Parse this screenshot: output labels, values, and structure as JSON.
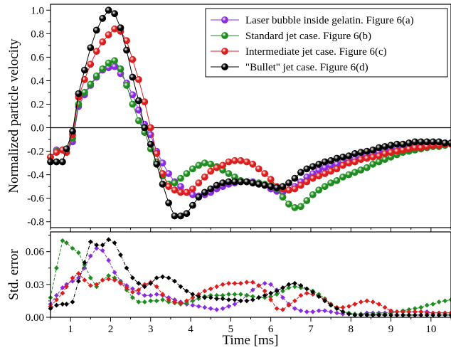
{
  "chart_data": [
    {
      "type": "line",
      "panel": "top",
      "xlabel": "",
      "ylabel": "Normalized particle velocity",
      "xlim": [
        0.5,
        10.5
      ],
      "ylim": [
        -0.85,
        1.05
      ],
      "xticks": [
        "1",
        "2",
        "3",
        "4",
        "5",
        "6",
        "7",
        "8",
        "9",
        "10"
      ],
      "yticks": [
        "-0.8",
        "-0.6",
        "-0.4",
        "-0.2",
        "0.0",
        "0.2",
        "0.4",
        "0.6",
        "0.8",
        "1.0"
      ],
      "hline": 0,
      "legend_position": "top-right",
      "x": [
        0.5,
        0.65,
        0.8,
        0.9,
        1.05,
        1.2,
        1.35,
        1.5,
        1.65,
        1.8,
        1.95,
        2.1,
        2.25,
        2.4,
        2.55,
        2.7,
        2.85,
        3.0,
        3.15,
        3.3,
        3.45,
        3.6,
        3.75,
        3.9,
        4.05,
        4.2,
        4.35,
        4.5,
        4.65,
        4.8,
        4.95,
        5.1,
        5.25,
        5.4,
        5.55,
        5.7,
        5.85,
        6.0,
        6.15,
        6.3,
        6.45,
        6.6,
        6.75,
        6.9,
        7.05,
        7.2,
        7.35,
        7.5,
        7.65,
        7.8,
        7.95,
        8.1,
        8.25,
        8.4,
        8.55,
        8.7,
        8.85,
        9.0,
        9.15,
        9.3,
        9.45,
        9.6,
        9.75,
        9.9,
        10.05,
        10.2,
        10.35,
        10.5
      ],
      "series": [
        {
          "name": "Laser bubble inside gelatin. Figure 6(a)",
          "color": "#8a2be2",
          "values": [
            -0.25,
            -0.19,
            -0.19,
            -0.21,
            -0.12,
            0.18,
            0.28,
            0.36,
            0.43,
            0.49,
            0.51,
            0.52,
            0.46,
            0.38,
            0.28,
            0.15,
            0.03,
            -0.06,
            -0.2,
            -0.3,
            -0.39,
            -0.46,
            -0.5,
            -0.55,
            -0.57,
            -0.58,
            -0.57,
            -0.55,
            -0.52,
            -0.5,
            -0.48,
            -0.47,
            -0.46,
            -0.46,
            -0.46,
            -0.47,
            -0.49,
            -0.52,
            -0.54,
            -0.55,
            -0.53,
            -0.5,
            -0.46,
            -0.42,
            -0.39,
            -0.36,
            -0.34,
            -0.32,
            -0.31,
            -0.29,
            -0.28,
            -0.27,
            -0.25,
            -0.24,
            -0.23,
            -0.21,
            -0.2,
            -0.19,
            -0.18,
            -0.17,
            -0.16,
            -0.16,
            -0.15,
            -0.15,
            -0.14,
            -0.14,
            -0.13,
            -0.13
          ]
        },
        {
          "name": "Standard jet case. Figure 6(b)",
          "color": "#1f8c1f",
          "values": [
            -0.25,
            -0.2,
            -0.19,
            -0.21,
            -0.09,
            0.2,
            0.3,
            0.37,
            0.44,
            0.5,
            0.55,
            0.57,
            0.5,
            0.36,
            0.2,
            0.06,
            -0.04,
            -0.18,
            -0.29,
            -0.41,
            -0.48,
            -0.47,
            -0.43,
            -0.39,
            -0.35,
            -0.32,
            -0.3,
            -0.31,
            -0.33,
            -0.36,
            -0.39,
            -0.42,
            -0.45,
            -0.46,
            -0.47,
            -0.47,
            -0.48,
            -0.49,
            -0.52,
            -0.59,
            -0.65,
            -0.68,
            -0.67,
            -0.62,
            -0.57,
            -0.53,
            -0.5,
            -0.47,
            -0.45,
            -0.42,
            -0.4,
            -0.38,
            -0.36,
            -0.34,
            -0.31,
            -0.29,
            -0.27,
            -0.25,
            -0.23,
            -0.21,
            -0.2,
            -0.19,
            -0.18,
            -0.17,
            -0.16,
            -0.16,
            -0.15,
            -0.14
          ]
        },
        {
          "name": "Intermediate jet case. Figure 6(c)",
          "color": "#dd1c1c",
          "values": [
            -0.25,
            -0.21,
            -0.19,
            -0.21,
            -0.06,
            0.26,
            0.41,
            0.54,
            0.65,
            0.73,
            0.79,
            0.84,
            0.82,
            0.74,
            0.58,
            0.41,
            0.22,
            0.0,
            -0.22,
            -0.39,
            -0.5,
            -0.53,
            -0.55,
            -0.55,
            -0.52,
            -0.47,
            -0.42,
            -0.37,
            -0.34,
            -0.32,
            -0.29,
            -0.28,
            -0.28,
            -0.29,
            -0.31,
            -0.35,
            -0.39,
            -0.44,
            -0.5,
            -0.52,
            -0.53,
            -0.52,
            -0.49,
            -0.46,
            -0.43,
            -0.41,
            -0.39,
            -0.37,
            -0.35,
            -0.32,
            -0.3,
            -0.29,
            -0.27,
            -0.26,
            -0.25,
            -0.24,
            -0.22,
            -0.21,
            -0.2,
            -0.19,
            -0.18,
            -0.17,
            -0.17,
            -0.16,
            -0.15,
            -0.15,
            -0.14,
            -0.14
          ]
        },
        {
          "name": "\"Bullet\" jet case. Figure 6(d)",
          "color": "#000000",
          "values": [
            -0.29,
            -0.29,
            -0.29,
            -0.18,
            -0.03,
            0.29,
            0.49,
            0.68,
            0.83,
            0.93,
            1.0,
            0.97,
            0.85,
            0.66,
            0.43,
            0.23,
            0.0,
            -0.14,
            -0.31,
            -0.48,
            -0.64,
            -0.75,
            -0.75,
            -0.73,
            -0.66,
            -0.59,
            -0.55,
            -0.52,
            -0.49,
            -0.47,
            -0.46,
            -0.46,
            -0.46,
            -0.46,
            -0.47,
            -0.48,
            -0.49,
            -0.5,
            -0.51,
            -0.5,
            -0.47,
            -0.43,
            -0.38,
            -0.35,
            -0.33,
            -0.31,
            -0.29,
            -0.28,
            -0.26,
            -0.25,
            -0.24,
            -0.22,
            -0.21,
            -0.2,
            -0.19,
            -0.17,
            -0.16,
            -0.15,
            -0.14,
            -0.14,
            -0.13,
            -0.12,
            -0.12,
            -0.12,
            -0.12,
            -0.12,
            -0.13,
            -0.13
          ]
        }
      ]
    },
    {
      "type": "line",
      "panel": "bottom",
      "xlabel": "Time [ms]",
      "ylabel": "Std. error",
      "xlim": [
        0.5,
        10.5
      ],
      "ylim": [
        0,
        0.078
      ],
      "xticks": [
        "1",
        "2",
        "3",
        "4",
        "5",
        "6",
        "7",
        "8",
        "9",
        "10"
      ],
      "yticks": [
        "0.00",
        "0.03",
        "0.06"
      ],
      "x": [
        0.5,
        0.65,
        0.8,
        0.9,
        1.05,
        1.2,
        1.35,
        1.5,
        1.65,
        1.8,
        1.95,
        2.1,
        2.25,
        2.4,
        2.55,
        2.7,
        2.85,
        3.0,
        3.15,
        3.3,
        3.45,
        3.6,
        3.75,
        3.9,
        4.05,
        4.2,
        4.35,
        4.5,
        4.65,
        4.8,
        4.95,
        5.1,
        5.25,
        5.4,
        5.55,
        5.7,
        5.85,
        6.0,
        6.15,
        6.3,
        6.45,
        6.6,
        6.75,
        6.9,
        7.05,
        7.2,
        7.35,
        7.5,
        7.65,
        7.8,
        7.95,
        8.1,
        8.25,
        8.4,
        8.55,
        8.7,
        8.85,
        9.0,
        9.15,
        9.3,
        9.45,
        9.6,
        9.75,
        9.9,
        10.05,
        10.2,
        10.35,
        10.5
      ],
      "series": [
        {
          "name": "Laser bubble inside gelatin. Figure 6(a)",
          "color": "#8a2be2",
          "values": [
            0.012,
            0.02,
            0.027,
            0.03,
            0.033,
            0.036,
            0.045,
            0.056,
            0.063,
            0.061,
            0.052,
            0.041,
            0.033,
            0.029,
            0.026,
            0.022,
            0.02,
            0.02,
            0.021,
            0.02,
            0.018,
            0.016,
            0.014,
            0.012,
            0.011,
            0.01,
            0.009,
            0.008,
            0.007,
            0.008,
            0.01,
            0.012,
            0.015,
            0.02,
            0.025,
            0.029,
            0.031,
            0.03,
            0.025,
            0.018,
            0.012,
            0.008,
            0.006,
            0.005,
            0.005,
            0.006,
            0.006,
            0.005,
            0.004,
            0.003,
            0.003,
            0.003,
            0.003,
            0.004,
            0.004,
            0.004,
            0.004,
            0.005,
            0.005,
            0.005,
            0.005,
            0.005,
            0.005,
            0.005,
            0.004,
            0.004,
            0.004,
            0.004
          ]
        },
        {
          "name": "Standard jet case. Figure 6(b)",
          "color": "#1f8c1f",
          "values": [
            0.018,
            0.045,
            0.07,
            0.068,
            0.063,
            0.059,
            0.048,
            0.036,
            0.028,
            0.034,
            0.038,
            0.036,
            0.032,
            0.025,
            0.018,
            0.014,
            0.014,
            0.015,
            0.015,
            0.016,
            0.014,
            0.013,
            0.012,
            0.013,
            0.015,
            0.017,
            0.019,
            0.02,
            0.02,
            0.02,
            0.021,
            0.021,
            0.021,
            0.02,
            0.019,
            0.018,
            0.018,
            0.019,
            0.021,
            0.024,
            0.027,
            0.028,
            0.027,
            0.026,
            0.024,
            0.021,
            0.017,
            0.012,
            0.008,
            0.005,
            0.004,
            0.003,
            0.003,
            0.003,
            0.003,
            0.003,
            0.003,
            0.004,
            0.005,
            0.006,
            0.007,
            0.008,
            0.009,
            0.011,
            0.012,
            0.014,
            0.015,
            0.016
          ]
        },
        {
          "name": "Intermediate jet case. Figure 6(c)",
          "color": "#dd1c1c",
          "values": [
            0.01,
            0.016,
            0.022,
            0.028,
            0.036,
            0.04,
            0.034,
            0.029,
            0.03,
            0.034,
            0.035,
            0.034,
            0.031,
            0.027,
            0.023,
            0.025,
            0.03,
            0.032,
            0.028,
            0.021,
            0.016,
            0.014,
            0.013,
            0.015,
            0.018,
            0.021,
            0.024,
            0.026,
            0.028,
            0.03,
            0.031,
            0.031,
            0.031,
            0.032,
            0.032,
            0.029,
            0.024,
            0.016,
            0.008,
            0.007,
            0.011,
            0.015,
            0.02,
            0.022,
            0.021,
            0.019,
            0.016,
            0.012,
            0.009,
            0.009,
            0.01,
            0.012,
            0.014,
            0.015,
            0.014,
            0.012,
            0.009,
            0.006,
            0.005,
            0.005,
            0.005,
            0.005,
            0.005,
            0.004,
            0.004,
            0.004,
            0.004,
            0.004
          ]
        },
        {
          "name": "\"Bullet\" jet case. Figure 6(d)",
          "color": "#000000",
          "values": [
            0.008,
            0.011,
            0.012,
            0.012,
            0.014,
            0.033,
            0.05,
            0.069,
            0.066,
            0.066,
            0.071,
            0.068,
            0.057,
            0.045,
            0.036,
            0.031,
            0.028,
            0.031,
            0.036,
            0.037,
            0.036,
            0.033,
            0.028,
            0.024,
            0.021,
            0.019,
            0.018,
            0.018,
            0.017,
            0.017,
            0.016,
            0.016,
            0.015,
            0.015,
            0.016,
            0.018,
            0.02,
            0.022,
            0.024,
            0.027,
            0.03,
            0.031,
            0.029,
            0.026,
            0.023,
            0.019,
            0.015,
            0.011,
            0.008,
            0.005,
            0.003,
            0.002,
            0.002,
            0.002,
            0.002,
            0.002,
            0.002,
            0.002,
            0.002,
            0.002,
            0.002,
            0.002,
            0.002,
            0.002,
            0.002,
            0.002,
            0.002,
            0.002
          ]
        }
      ]
    }
  ]
}
